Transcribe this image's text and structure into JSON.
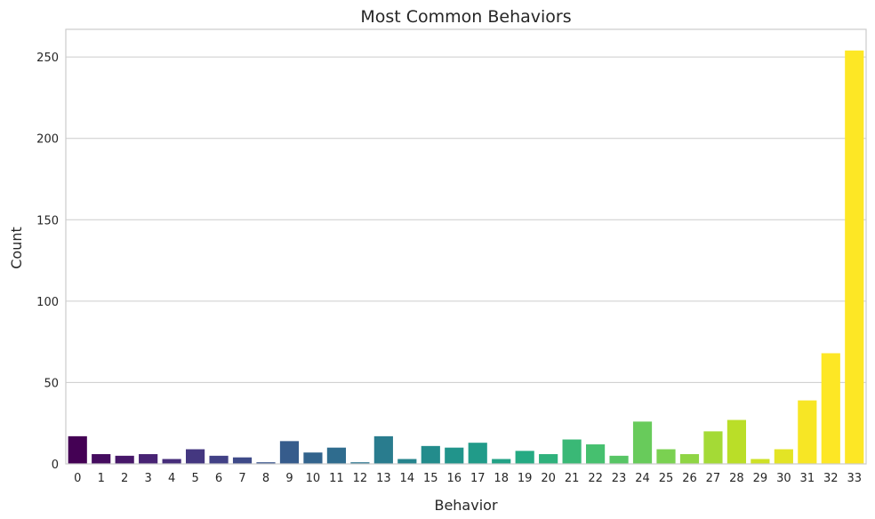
{
  "chart_data": {
    "type": "bar",
    "title": "Most Common Behaviors",
    "xlabel": "Behavior",
    "ylabel": "Count",
    "categories": [
      "0",
      "1",
      "2",
      "3",
      "4",
      "5",
      "6",
      "7",
      "8",
      "9",
      "10",
      "11",
      "12",
      "13",
      "14",
      "15",
      "16",
      "17",
      "18",
      "19",
      "20",
      "21",
      "22",
      "23",
      "24",
      "25",
      "26",
      "27",
      "28",
      "29",
      "30",
      "31",
      "32",
      "33"
    ],
    "values": [
      17,
      6,
      5,
      6,
      3,
      9,
      5,
      4,
      1,
      14,
      7,
      10,
      1,
      17,
      3,
      11,
      10,
      13,
      3,
      8,
      6,
      15,
      12,
      5,
      26,
      9,
      6,
      20,
      27,
      3,
      9,
      39,
      68,
      254
    ],
    "ylim": [
      0,
      267
    ],
    "yticks": [
      0,
      50,
      100,
      150,
      200,
      250
    ],
    "grid": "horizontal",
    "colormap": "viridis"
  }
}
